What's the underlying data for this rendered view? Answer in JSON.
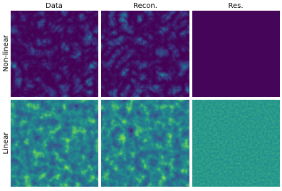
{
  "columns": [
    "Data",
    "Recon.",
    "Res."
  ],
  "rows": [
    "Non-linear",
    "Linear"
  ]
}
